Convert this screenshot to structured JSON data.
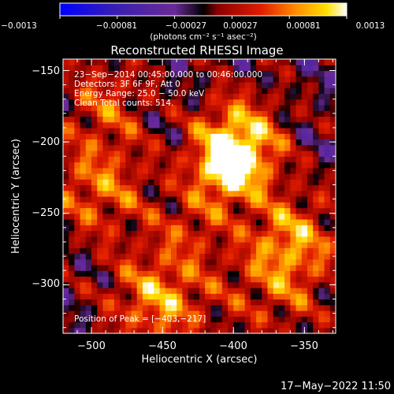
{
  "colorbar": {
    "tick_labels": [
      "−0.0013",
      "−0.00081",
      "−0.00027",
      "0.00027",
      "0.00081",
      "0.0013"
    ],
    "range": [
      -0.0013,
      0.0013
    ],
    "unit_label": "(photons cm⁻² s⁻¹ asec⁻²)"
  },
  "chart_data": {
    "type": "heatmap",
    "title": "Reconstructed RHESSI Image",
    "xlabel": "Heliocentric X (arcsec)",
    "ylabel": "Heliocentric Y (arcsec)",
    "xlim": [
      -520,
      -328
    ],
    "ylim": [
      -334,
      -142
    ],
    "xticks": [
      -500,
      -450,
      -400,
      -350
    ],
    "yticks": [
      -150,
      -200,
      -250,
      -300
    ],
    "xtick_labels": [
      "−500",
      "−450",
      "−400",
      "−350"
    ],
    "ytick_labels": [
      "−150",
      "−200",
      "−250",
      "−300"
    ],
    "grid": false,
    "colormap": "rainbow-like: blue, purple, red, orange, yellow, white",
    "annotations": [
      "23−Sep−2014 00:45:00.000 to 00:46:00.000",
      "Detectors: 3F 6F 9F, Att 0",
      "Energy Range: 25.0 − 50.0 keV",
      "Clean   Total counts: 514."
    ],
    "peak_label": "Position of Peak = [−403,−217]",
    "peak": {
      "x": -403,
      "y": -217
    },
    "grid_size": 48
  },
  "footer": {
    "timestamp": "17−May−2022 11:50"
  }
}
